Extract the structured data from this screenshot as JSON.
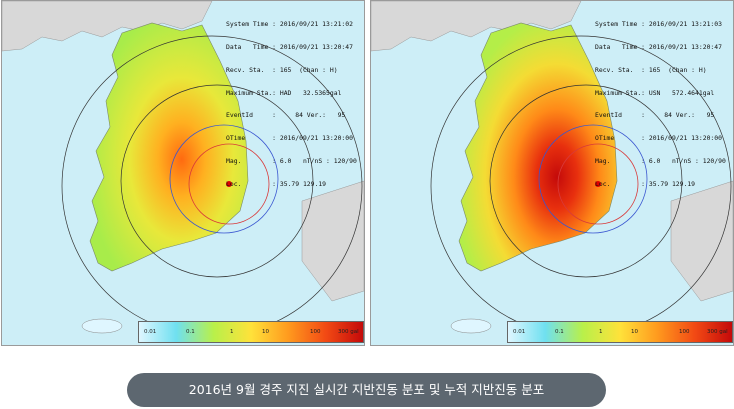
{
  "panels": [
    {
      "id": "realtime",
      "info_lines": [
        "System Time : 2016/09/21 13:21:02",
        "Data   Time : 2016/09/21 13:20:47",
        "Recv. Sta.  : 165  (Chan : H)",
        "Maximum Sta.: HAD   32.5365gal",
        "EventId     :     84 Ver.:   95",
        "OTime       : 2016/09/21 13:20:00",
        "Mag.        : 6.0   nT/nS : 120/90",
        "Loc.        : 35.79 129.19"
      ],
      "hotspot_intensity": "medium"
    },
    {
      "id": "cumulative",
      "info_lines": [
        "System Time : 2016/09/21 13:21:03",
        "Data   Time : 2016/09/21 13:20:47",
        "Recv. Sta.  : 165  (Chan : H)",
        "Maximum Sta.: USN   572.4641gal",
        "EventId     :     84 Ver.:   95",
        "OTime       : 2016/09/21 13:20:00",
        "Mag.        : 6.0   nT/nS : 120/90",
        "Loc.        : 35.79 129.19"
      ],
      "hotspot_intensity": "high"
    }
  ],
  "legend": {
    "labels": [
      "0.01",
      "0.1",
      "1",
      "10",
      "100",
      "300 gal"
    ],
    "colors": [
      "#dff6ff",
      "#6fe0f0",
      "#b8f04a",
      "#ffe23a",
      "#ff9a1e",
      "#f24a14",
      "#c40a0a"
    ]
  },
  "colors": {
    "sea": "#cdeef7",
    "foreign_land": "#d8d8d8",
    "caption_bg": "#5d6770"
  },
  "caption": "2016년 9월 경주 지진 실시간 지반진동 분포 및 누적 지반진동 분포"
}
